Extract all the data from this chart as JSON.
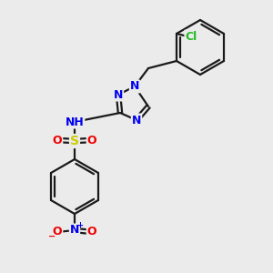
{
  "background_color": "#ebebeb",
  "bond_color": "#1a1a1a",
  "atom_colors": {
    "N": "#0000ee",
    "O": "#ee0000",
    "S": "#cccc00",
    "Cl": "#22bb22",
    "H": "#4a8888",
    "C": "#1a1a1a"
  },
  "figsize": [
    3.0,
    3.0
  ],
  "dpi": 100,
  "lw": 1.6
}
